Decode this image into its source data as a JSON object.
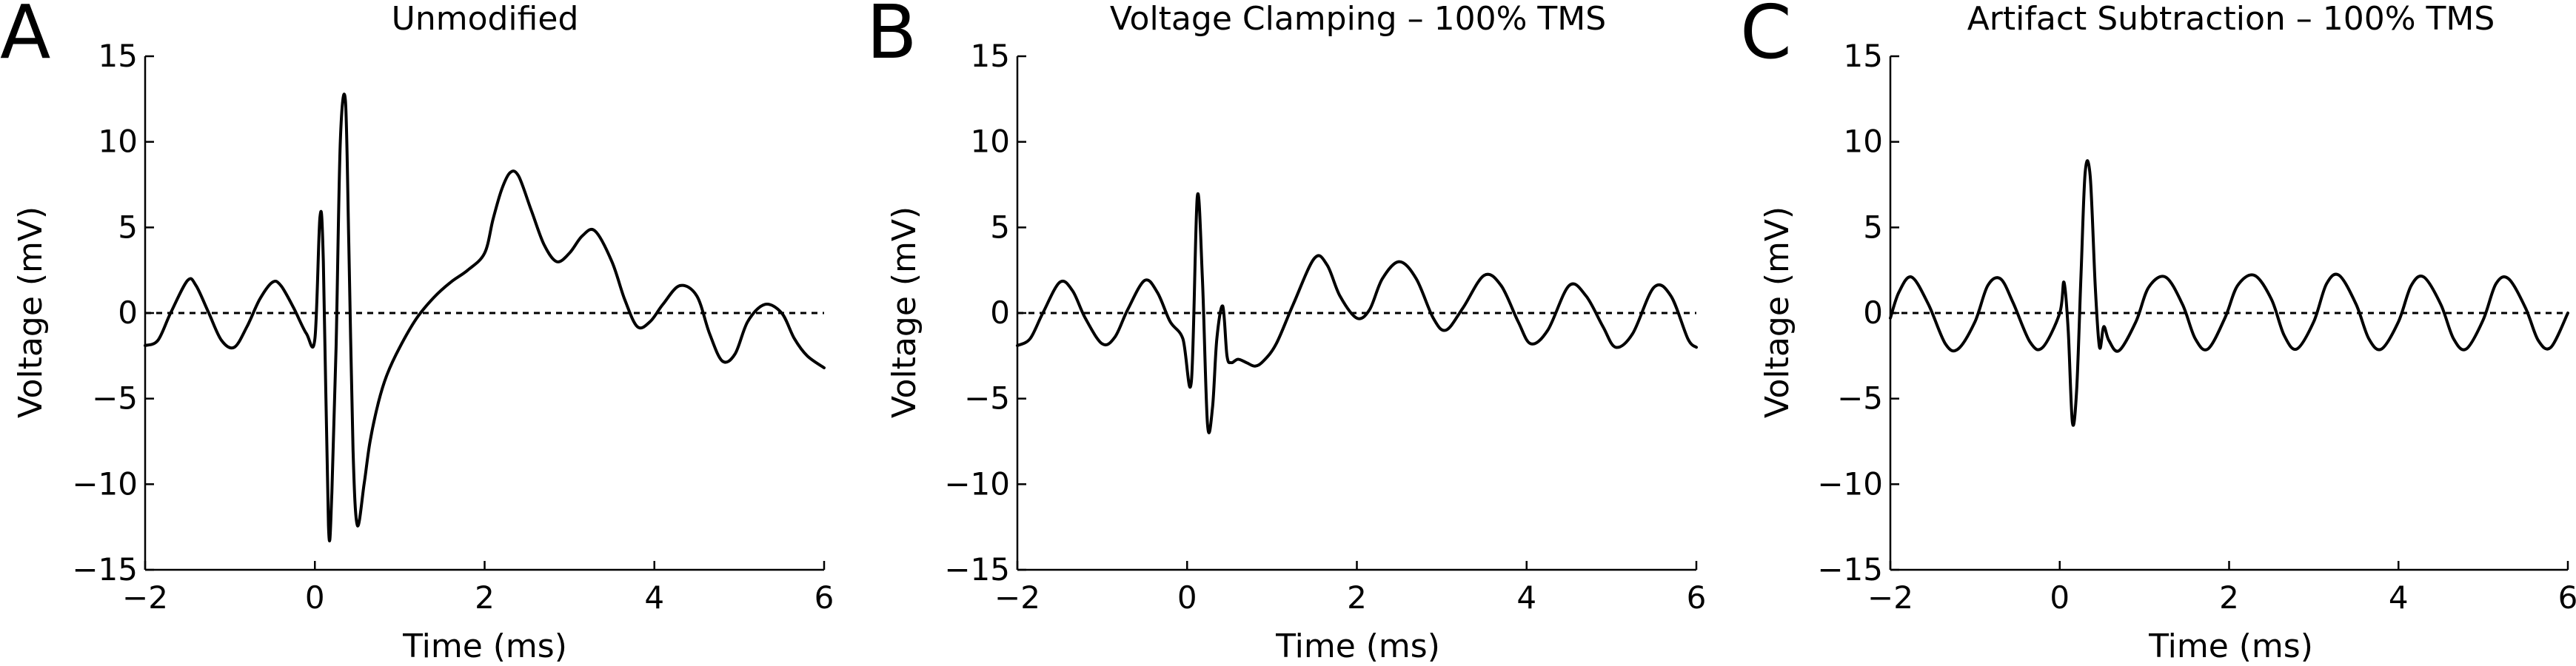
{
  "chart_data": [
    {
      "type": "line",
      "panel_letter": "A",
      "title": "Unmodified",
      "xlabel": "Time (ms)",
      "ylabel": "Voltage (mV)",
      "xlim": [
        -2,
        6
      ],
      "ylim": [
        -15,
        15
      ],
      "xticks": [
        -2,
        0,
        2,
        4,
        6
      ],
      "xtick_labels": [
        "−2",
        "0",
        "2",
        "4",
        "6"
      ],
      "yticks": [
        -15,
        -10,
        -5,
        0,
        5,
        10,
        15
      ],
      "ytick_labels": [
        "−15",
        "−10",
        "−5",
        "0",
        "5",
        "10",
        "15"
      ],
      "grid": false,
      "reference_line": 0,
      "series": [
        {
          "x": [
            -2,
            -1.85,
            -1.7,
            -1.5,
            -1.4,
            -1.25,
            -1.1,
            -0.95,
            -0.8,
            -0.65,
            -0.5,
            -0.4,
            -0.25,
            -0.1,
            0.0,
            0.06,
            0.1,
            0.16,
            0.2,
            0.25,
            0.3,
            0.36,
            0.4,
            0.45,
            0.5,
            0.58,
            0.65,
            0.75,
            0.85,
            1.0,
            1.2,
            1.4,
            1.6,
            1.8,
            2.0,
            2.1,
            2.2,
            2.3,
            2.4,
            2.55,
            2.7,
            2.85,
            3.0,
            3.15,
            3.3,
            3.5,
            3.65,
            3.8,
            3.95,
            4.1,
            4.3,
            4.5,
            4.65,
            4.8,
            4.95,
            5.1,
            5.3,
            5.5,
            5.65,
            5.8,
            6.0
          ],
          "y": [
            -1.9,
            -1.6,
            0.0,
            1.9,
            1.6,
            0.0,
            -1.6,
            -2.0,
            -0.8,
            0.8,
            1.8,
            1.6,
            0.3,
            -1.2,
            -1.5,
            5.6,
            3.0,
            -12.4,
            -10.5,
            -2.0,
            10.0,
            12.4,
            4.0,
            -8.0,
            -12.4,
            -10.0,
            -7.5,
            -5.2,
            -3.6,
            -2.0,
            -0.3,
            0.9,
            1.8,
            2.5,
            3.5,
            5.5,
            7.2,
            8.2,
            8.0,
            6.0,
            4.0,
            3.0,
            3.5,
            4.5,
            4.8,
            3.0,
            0.8,
            -0.8,
            -0.5,
            0.5,
            1.6,
            1.0,
            -1.2,
            -2.8,
            -2.4,
            -0.5,
            0.5,
            0.0,
            -1.5,
            -2.5,
            -3.2
          ]
        }
      ]
    },
    {
      "type": "line",
      "panel_letter": "B",
      "title": "Voltage Clamping – 100% TMS",
      "xlabel": "Time (ms)",
      "ylabel": "Voltage (mV)",
      "xlim": [
        -2,
        6
      ],
      "ylim": [
        -15,
        15
      ],
      "xticks": [
        -2,
        0,
        2,
        4,
        6
      ],
      "xtick_labels": [
        "−2",
        "0",
        "2",
        "4",
        "6"
      ],
      "yticks": [
        -15,
        -10,
        -5,
        0,
        5,
        10,
        15
      ],
      "ytick_labels": [
        "−15",
        "−10",
        "−5",
        "0",
        "5",
        "10",
        "15"
      ],
      "grid": false,
      "reference_line": 0,
      "series": [
        {
          "x": [
            -2,
            -1.85,
            -1.7,
            -1.5,
            -1.35,
            -1.2,
            -1.0,
            -0.85,
            -0.7,
            -0.5,
            -0.35,
            -0.2,
            -0.05,
            0.05,
            0.12,
            0.18,
            0.24,
            0.3,
            0.35,
            0.42,
            0.47,
            0.52,
            0.6,
            0.7,
            0.8,
            0.9,
            1.05,
            1.25,
            1.5,
            1.65,
            1.8,
            2.0,
            2.15,
            2.3,
            2.5,
            2.7,
            2.9,
            3.05,
            3.25,
            3.5,
            3.7,
            3.9,
            4.05,
            4.25,
            4.5,
            4.7,
            4.9,
            5.05,
            5.25,
            5.5,
            5.7,
            5.9,
            6.0
          ],
          "y": [
            -1.9,
            -1.5,
            0.0,
            1.8,
            1.3,
            -0.3,
            -1.8,
            -1.4,
            0.2,
            1.9,
            1.2,
            -0.5,
            -1.5,
            -4.0,
            6.8,
            2.0,
            -6.5,
            -5.5,
            -1.5,
            0.4,
            -2.5,
            -2.9,
            -2.7,
            -2.9,
            -3.1,
            -2.8,
            -1.8,
            0.5,
            3.2,
            2.8,
            1.0,
            -0.3,
            0.2,
            2.0,
            3.0,
            2.0,
            -0.3,
            -1.0,
            0.3,
            2.2,
            1.6,
            -0.5,
            -1.8,
            -1.0,
            1.6,
            1.0,
            -0.8,
            -2.0,
            -1.2,
            1.5,
            1.0,
            -1.5,
            -2.0
          ]
        }
      ]
    },
    {
      "type": "line",
      "panel_letter": "C",
      "title": "Artifact Subtraction – 100% TMS",
      "xlabel": "Time (ms)",
      "ylabel": "Voltage (mV)",
      "xlim": [
        -2,
        6
      ],
      "ylim": [
        -15,
        15
      ],
      "xticks": [
        -2,
        0,
        2,
        4,
        6
      ],
      "xtick_labels": [
        "−2",
        "0",
        "2",
        "4",
        "6"
      ],
      "yticks": [
        -15,
        -10,
        -5,
        0,
        5,
        10,
        15
      ],
      "ytick_labels": [
        "−15",
        "−10",
        "−5",
        "0",
        "5",
        "10",
        "15"
      ],
      "grid": false,
      "reference_line": 0,
      "series": [
        {
          "x": [
            -2,
            -1.9,
            -1.75,
            -1.55,
            -1.35,
            -1.2,
            -1.0,
            -0.85,
            -0.7,
            -0.55,
            -0.35,
            -0.2,
            0.0,
            0.05,
            0.1,
            0.15,
            0.2,
            0.25,
            0.3,
            0.36,
            0.42,
            0.47,
            0.52,
            0.58,
            0.7,
            0.9,
            1.05,
            1.25,
            1.45,
            1.6,
            1.75,
            1.95,
            2.1,
            2.3,
            2.5,
            2.65,
            2.8,
            3.0,
            3.15,
            3.3,
            3.5,
            3.65,
            3.8,
            4.0,
            4.15,
            4.3,
            4.5,
            4.65,
            4.8,
            5.0,
            5.15,
            5.3,
            5.5,
            5.65,
            5.8,
            6.0
          ],
          "y": [
            -0.3,
            1.2,
            2.1,
            0.5,
            -1.8,
            -2.1,
            -0.5,
            1.6,
            2.0,
            0.6,
            -1.7,
            -2.0,
            0.0,
            1.8,
            -1.0,
            -6.4,
            -4.5,
            2.0,
            8.2,
            8.0,
            1.5,
            -2.0,
            -0.8,
            -1.6,
            -2.2,
            -0.5,
            1.5,
            2.1,
            0.5,
            -1.5,
            -2.1,
            -0.3,
            1.6,
            2.2,
            0.8,
            -1.3,
            -2.1,
            -0.5,
            1.7,
            2.2,
            0.5,
            -1.5,
            -2.1,
            -0.5,
            1.6,
            2.1,
            0.5,
            -1.5,
            -2.1,
            -0.4,
            1.7,
            2.0,
            0.3,
            -1.6,
            -2.0,
            0.0
          ]
        }
      ]
    }
  ]
}
